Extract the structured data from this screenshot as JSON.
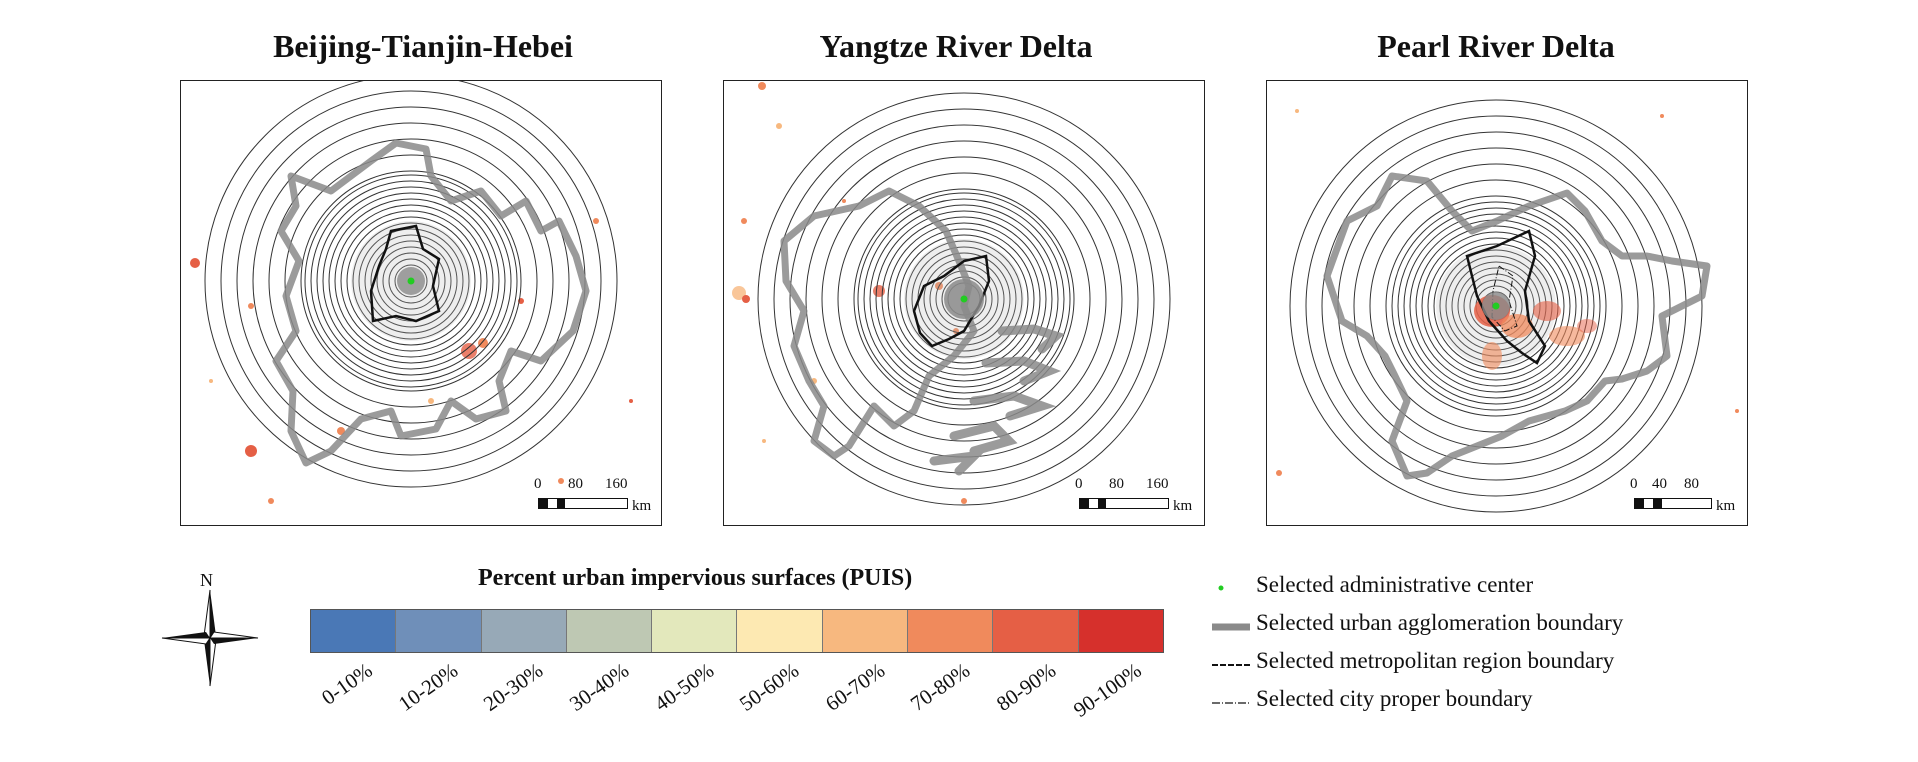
{
  "panels": [
    {
      "title": "Beijing-Tianjin-Hebei",
      "scale_ticks": [
        "0",
        "80",
        "160"
      ],
      "scale_unit": "km"
    },
    {
      "title": "Yangtze River Delta",
      "scale_ticks": [
        "0",
        "80",
        "160"
      ],
      "scale_unit": "km"
    },
    {
      "title": "Pearl River Delta",
      "scale_ticks": [
        "0",
        "40",
        "80"
      ],
      "scale_unit": "km"
    }
  ],
  "north_label": "N",
  "legend": {
    "title": "Percent urban impervious surfaces (PUIS)",
    "classes": [
      {
        "label": "0-10%",
        "color": "#4a78b6"
      },
      {
        "label": "10-20%",
        "color": "#6f8fb9"
      },
      {
        "label": "20-30%",
        "color": "#97a9b7"
      },
      {
        "label": "30-40%",
        "color": "#bec8b3"
      },
      {
        "label": "40-50%",
        "color": "#e3e8bc"
      },
      {
        "label": "50-60%",
        "color": "#fde9b2"
      },
      {
        "label": "60-70%",
        "color": "#f7b87f"
      },
      {
        "label": "70-80%",
        "color": "#f08a5c"
      },
      {
        "label": "80-90%",
        "color": "#e55f45"
      },
      {
        "label": "90-100%",
        "color": "#d6302c"
      }
    ]
  },
  "boundary_legend": [
    {
      "symbol": "center-dot",
      "label": "Selected administrative center"
    },
    {
      "symbol": "agglomeration-line",
      "label": "Selected urban agglomeration boundary"
    },
    {
      "symbol": "metropolitan-line",
      "label": "Selected metropolitan region boundary"
    },
    {
      "symbol": "city-proper-line",
      "label": "Selected city proper boundary"
    }
  ],
  "colors": {
    "center": "#22cc22",
    "agglomeration": "#8a8a8a",
    "rings": "#333333",
    "frame": "#222222"
  }
}
